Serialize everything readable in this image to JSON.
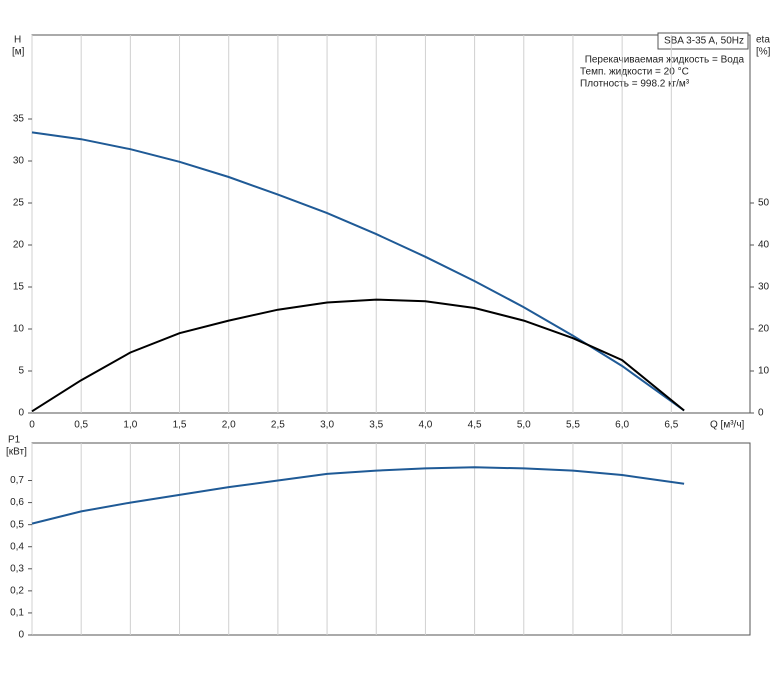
{
  "chart_data": [
    {
      "type": "line",
      "y_label": "H",
      "y_unit": "[м]",
      "y2_label": "eta",
      "y2_unit": "[%]",
      "x_label": "Q [м³/ч]",
      "annotations": [
        "SBA 3-35 A, 50Hz",
        "Перекачиваемая жидкость = Вода",
        "Темп. жидкости = 20 °C",
        "Плотность = 998.2 кг/м³"
      ],
      "x": [
        0,
        0.5,
        1.0,
        1.5,
        2.0,
        2.5,
        3.0,
        3.5,
        4.0,
        4.5,
        5.0,
        5.5,
        6.0,
        6.63
      ],
      "series": [
        {
          "color": "#1f5a96",
          "values": [
            33.4,
            32.6,
            31.4,
            29.9,
            28.1,
            26.0,
            23.8,
            21.3,
            18.6,
            15.7,
            12.6,
            9.2,
            5.6,
            0.3
          ]
        },
        {
          "color": "#000000",
          "axis": "y2",
          "values": [
            0.4,
            7.8,
            14.4,
            19,
            22,
            24.6,
            26.3,
            27,
            26.6,
            25,
            22,
            17.8,
            12.6,
            0.6
          ]
        }
      ],
      "xlim": [
        0,
        7.3
      ],
      "ylim": [
        0,
        45
      ],
      "y2lim": [
        0,
        90
      ],
      "xticks": [
        0,
        {
          "value": 0.5,
          "label": "0,5"
        },
        {
          "value": 1.0,
          "label": "1,0"
        },
        {
          "value": 1.5,
          "label": "1,5"
        },
        {
          "value": 2.0,
          "label": "2,0"
        },
        {
          "value": 2.5,
          "label": "2,5"
        },
        {
          "value": 3.0,
          "label": "3,0"
        },
        {
          "value": 3.5,
          "label": "3,5"
        },
        {
          "value": 4.0,
          "label": "4,0"
        },
        {
          "value": 4.5,
          "label": "4,5"
        },
        {
          "value": 5.0,
          "label": "5,0"
        },
        {
          "value": 5.5,
          "label": "5,5"
        },
        {
          "value": 6.0,
          "label": "6,0"
        },
        {
          "value": 6.5,
          "label": "6,5"
        }
      ],
      "yticks": [
        0,
        5,
        10,
        15,
        20,
        25,
        30,
        35
      ],
      "y2ticks": [
        0,
        10,
        20,
        30,
        40,
        50
      ],
      "grid": "x"
    },
    {
      "type": "line",
      "y_label": "P1",
      "y_unit": "[кВт]",
      "x": [
        0,
        0.5,
        1.0,
        1.5,
        2.0,
        2.5,
        3.0,
        3.5,
        4.0,
        4.5,
        5.0,
        5.5,
        6.0,
        6.63
      ],
      "series": [
        {
          "color": "#1f5a96",
          "values": [
            0.505,
            0.56,
            0.6,
            0.635,
            0.67,
            0.7,
            0.73,
            0.745,
            0.755,
            0.76,
            0.755,
            0.745,
            0.725,
            0.685
          ]
        }
      ],
      "xlim": [
        0,
        7.3
      ],
      "ylim": [
        0,
        0.87
      ],
      "yticks": [
        0,
        {
          "value": 0.1,
          "label": "0,1"
        },
        {
          "value": 0.2,
          "label": "0,2"
        },
        {
          "value": 0.3,
          "label": "0,3"
        },
        {
          "value": 0.4,
          "label": "0,4"
        },
        {
          "value": 0.5,
          "label": "0,5"
        },
        {
          "value": 0.6,
          "label": "0,6"
        },
        {
          "value": 0.7,
          "label": "0,7"
        }
      ],
      "grid": "x"
    }
  ]
}
